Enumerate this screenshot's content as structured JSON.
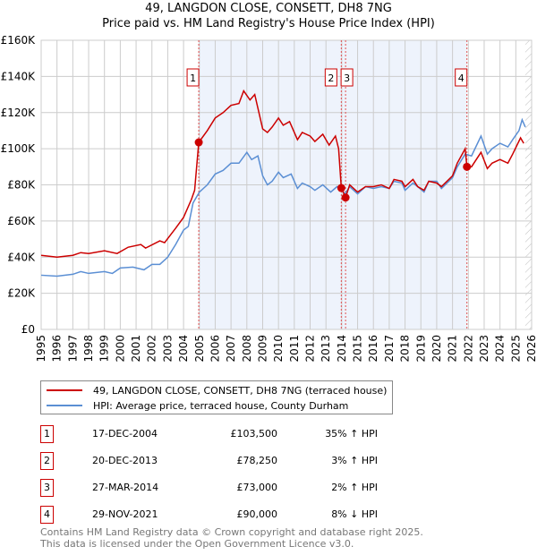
{
  "chart_data": {
    "type": "line",
    "title": "49, LANGDON CLOSE, CONSETT, DH8 7NG",
    "subtitle": "Price paid vs. HM Land Registry's House Price Index (HPI)",
    "xlim": [
      1995,
      2026
    ],
    "ylim": [
      0,
      160000
    ],
    "x_ticks": [
      "1995",
      "1996",
      "1997",
      "1998",
      "1999",
      "2000",
      "2001",
      "2002",
      "2003",
      "2004",
      "2005",
      "2006",
      "2007",
      "2008",
      "2009",
      "2010",
      "2011",
      "2012",
      "2013",
      "2014",
      "2015",
      "2016",
      "2017",
      "2018",
      "2019",
      "2020",
      "2021",
      "2022",
      "2023",
      "2024",
      "2025",
      "2026"
    ],
    "y_ticks": [
      {
        "v": 0,
        "label": "£0"
      },
      {
        "v": 20000,
        "label": "£20K"
      },
      {
        "v": 40000,
        "label": "£40K"
      },
      {
        "v": 60000,
        "label": "£60K"
      },
      {
        "v": 80000,
        "label": "£80K"
      },
      {
        "v": 100000,
        "label": "£100K"
      },
      {
        "v": 120000,
        "label": "£120K"
      },
      {
        "v": 140000,
        "label": "£140K"
      },
      {
        "v": 160000,
        "label": "£160K"
      }
    ],
    "grid": true,
    "colors": {
      "property": "#cc0000",
      "hpi": "#5b8fd4",
      "shade": "#eef3fc"
    },
    "series": [
      {
        "name": "49, LANGDON CLOSE, CONSETT, DH8 7NG (terraced house)",
        "color": "#cc0000",
        "x": [
          1995,
          1996,
          1997,
          1997.5,
          1998,
          1999,
          1999.8,
          2000.5,
          2001.3,
          2001.6,
          2002.5,
          2002.8,
          2003.5,
          2004,
          2004.5,
          2004.7,
          2004.96,
          2005.5,
          2006,
          2006.5,
          2007,
          2007.5,
          2007.8,
          2008.2,
          2008.5,
          2009,
          2009.3,
          2009.6,
          2010,
          2010.3,
          2010.7,
          2011.2,
          2011.5,
          2012,
          2012.3,
          2012.8,
          2013.2,
          2013.6,
          2013.8,
          2013.97,
          2014.24,
          2014.5,
          2015,
          2015.5,
          2016,
          2016.5,
          2017,
          2017.3,
          2017.8,
          2018,
          2018.5,
          2018.8,
          2019.2,
          2019.5,
          2020,
          2020.3,
          2021,
          2021.3,
          2021.8,
          2021.91,
          2022.2,
          2022.8,
          2023.2,
          2023.5,
          2024,
          2024.5,
          2024.8,
          2025.3,
          2025.5
        ],
        "y": [
          41,
          40,
          41,
          42.5,
          42,
          43.5,
          42,
          45.5,
          47,
          45,
          49,
          48,
          56,
          62,
          72,
          77,
          103.5,
          110,
          117,
          120,
          124,
          125,
          132,
          127,
          130,
          111,
          109,
          112,
          117,
          113,
          115,
          105,
          109,
          107,
          104,
          108,
          102,
          107,
          100,
          78.25,
          73,
          80,
          76,
          79,
          79,
          80,
          78,
          83,
          82,
          79,
          83,
          79,
          77,
          82,
          81,
          79,
          85,
          92,
          100,
          90,
          90,
          98,
          89,
          92,
          94,
          92,
          97,
          106,
          103
        ]
      },
      {
        "name": "HPI: Average price, terraced house, County Durham",
        "color": "#5b8fd4",
        "x": [
          1995,
          1996,
          1997,
          1997.5,
          1998,
          1999,
          1999.5,
          2000,
          2000.8,
          2001.5,
          2002,
          2002.5,
          2003,
          2003.5,
          2004,
          2004.3,
          2004.6,
          2005,
          2005.5,
          2006,
          2006.5,
          2007,
          2007.5,
          2008,
          2008.3,
          2008.7,
          2009,
          2009.3,
          2009.6,
          2010,
          2010.3,
          2010.8,
          2011.2,
          2011.5,
          2012,
          2012.3,
          2012.8,
          2013.3,
          2013.7,
          2014,
          2014.2,
          2014.5,
          2015,
          2015.5,
          2016,
          2016.5,
          2017,
          2017.3,
          2017.8,
          2018,
          2018.5,
          2018.8,
          2019.2,
          2019.5,
          2020,
          2020.3,
          2021,
          2021.3,
          2021.8,
          2022.2,
          2022.8,
          2023.2,
          2023.5,
          2024,
          2024.5,
          2024.8,
          2025.2,
          2025.4,
          2025.6
        ],
        "y": [
          30,
          29.5,
          30.5,
          32,
          31,
          32,
          31,
          34,
          34.5,
          33,
          36,
          36,
          40,
          47,
          55,
          57,
          70,
          76,
          80,
          86,
          88,
          92,
          92,
          98,
          94,
          96,
          85,
          80,
          82,
          87,
          84,
          86,
          78,
          81,
          79,
          77,
          80,
          76,
          79,
          77,
          75,
          79,
          75,
          79,
          78,
          79,
          78,
          82,
          81,
          77,
          81,
          79,
          76,
          82,
          82,
          78,
          84,
          90,
          97,
          96,
          107,
          97,
          100,
          103,
          101,
          105,
          110,
          116,
          112
        ]
      }
    ],
    "y_units": "thousand GBP",
    "sales": [
      {
        "label": "1",
        "x": 2004.96,
        "y": 103.5
      },
      {
        "label": "2",
        "x": 2013.97,
        "y": 78.25
      },
      {
        "label": "3",
        "x": 2014.24,
        "y": 73
      },
      {
        "label": "4",
        "x": 2021.91,
        "y": 90
      }
    ],
    "shaded_range": [
      2004.96,
      2021.91
    ],
    "forecast_hatch_from": 2025.6
  },
  "legend": {
    "property": "49, LANGDON CLOSE, CONSETT, DH8 7NG (terraced house)",
    "hpi": "HPI: Average price, terraced house, County Durham"
  },
  "transactions": [
    {
      "num": "1",
      "date": "17-DEC-2004",
      "price": "£103,500",
      "hpi": "35% ↑ HPI"
    },
    {
      "num": "2",
      "date": "20-DEC-2013",
      "price": "£78,250",
      "hpi": "3% ↑ HPI"
    },
    {
      "num": "3",
      "date": "27-MAR-2014",
      "price": "£73,000",
      "hpi": "2% ↑ HPI"
    },
    {
      "num": "4",
      "date": "29-NOV-2021",
      "price": "£90,000",
      "hpi": "8% ↓ HPI"
    }
  ],
  "footer": {
    "line1": "Contains HM Land Registry data © Crown copyright and database right 2025.",
    "line2": "This data is licensed under the Open Government Licence v3.0."
  }
}
